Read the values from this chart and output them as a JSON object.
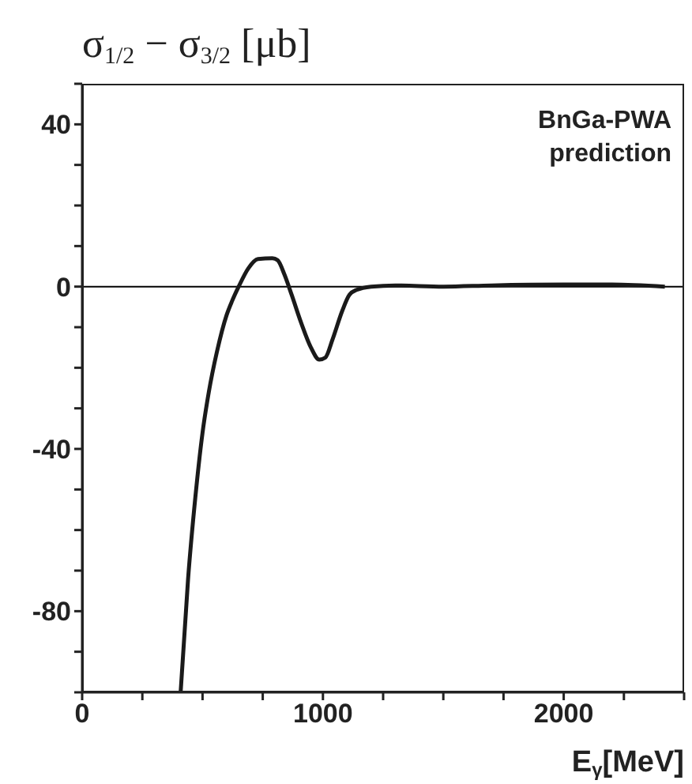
{
  "chart_data": {
    "type": "line",
    "ylabel": "σ$_{1/2}$ − σ$_{3/2}$ [μb]",
    "xlabel": "E$_{γ}$[MeV]",
    "annotations": [
      "BnGa-PWA\nprediction"
    ],
    "marker": "none",
    "line_style": "solid",
    "xlim": [
      0,
      2500
    ],
    "ylim": [
      -100,
      50
    ],
    "xticks": [
      0,
      {
        "value": 250,
        "label": null
      },
      {
        "value": 500,
        "label": null
      },
      {
        "value": 750,
        "label": null
      },
      1000,
      {
        "value": 1250,
        "label": null
      },
      {
        "value": 1500,
        "label": null
      },
      {
        "value": 1750,
        "label": null
      },
      2000,
      {
        "value": 2250,
        "label": null
      },
      {
        "value": 2500,
        "label": null
      }
    ],
    "yticks": [
      {
        "value": -100,
        "label": null
      },
      {
        "value": -90,
        "label": null
      },
      -80,
      {
        "value": -70,
        "label": null
      },
      {
        "value": -60,
        "label": null
      },
      {
        "value": -50,
        "label": null
      },
      -40,
      {
        "value": -30,
        "label": null
      },
      {
        "value": -20,
        "label": null
      },
      {
        "value": -10,
        "label": null
      },
      0,
      {
        "value": 10,
        "label": null
      },
      {
        "value": 20,
        "label": null
      },
      {
        "value": 30,
        "label": null
      },
      40,
      {
        "value": 50,
        "label": null
      }
    ],
    "ref_lines": [
      {
        "axis": "y",
        "value": 0,
        "color": "#000000"
      }
    ],
    "x": [
      409,
      440,
      470,
      500,
      526,
      560,
      600,
      623,
      650,
      690,
      730,
      790,
      812,
      840,
      870,
      910,
      950,
      985,
      1010,
      1040,
      1080,
      1110,
      1140,
      1200,
      1300,
      1500,
      1700,
      2000,
      2200,
      2420
    ],
    "series": [
      {
        "color": "#1a1a1a",
        "values": [
          -100,
          -72,
          -52,
          -36,
          -26,
          -16,
          -7,
          -3.5,
          0,
          4.5,
          6.8,
          7,
          6.5,
          3,
          -2,
          -9,
          -15,
          -18,
          -17.5,
          -13,
          -6,
          -2,
          -0.8,
          0,
          0.3,
          0,
          0.3,
          0.5,
          0.5,
          0
        ]
      }
    ]
  }
}
